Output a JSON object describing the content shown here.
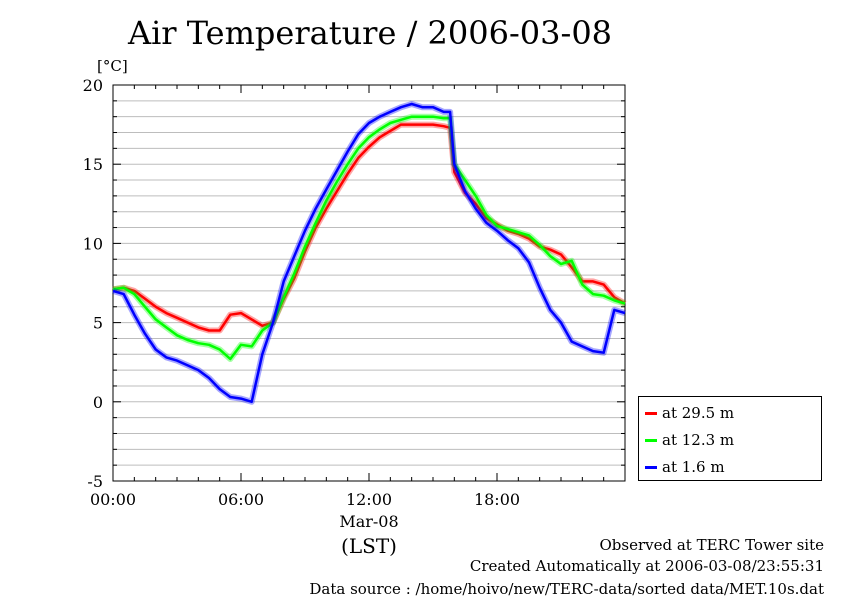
{
  "title": "Air Temperature / 2006-03-08",
  "chart_data": {
    "type": "line",
    "title": "Air Temperature / 2006-03-08",
    "ylabel": "[°C]",
    "xlabel": "(LST)",
    "x_date_label": "Mar-08",
    "ylim": [
      -5,
      20
    ],
    "xlim_hours": [
      0,
      24
    ],
    "y_ticks": [
      "20",
      "15",
      "10",
      "5",
      "0",
      "-5"
    ],
    "x_ticks": [
      "00:00",
      "06:00",
      "12:00",
      "18:00"
    ],
    "grid": true,
    "legend_position": "right",
    "series": [
      {
        "name": "at 29.5 m",
        "color": "#ff0000",
        "x": [
          0,
          0.5,
          1,
          1.5,
          2,
          2.5,
          3,
          3.5,
          4,
          4.5,
          5,
          5.5,
          6,
          6.5,
          7,
          7.5,
          8,
          8.5,
          9,
          9.5,
          10,
          10.5,
          11,
          11.5,
          12,
          12.5,
          13,
          13.5,
          14,
          14.5,
          15,
          15.5,
          15.8,
          16,
          16.5,
          17,
          17.5,
          18,
          18.5,
          19,
          19.5,
          20,
          20.5,
          21,
          21.5,
          22,
          22.5,
          23,
          23.5,
          24
        ],
        "values": [
          7.1,
          7.2,
          7.0,
          6.5,
          6.0,
          5.6,
          5.3,
          5.0,
          4.7,
          4.5,
          4.5,
          5.5,
          5.6,
          5.2,
          4.8,
          5.0,
          6.5,
          7.8,
          9.5,
          11.0,
          12.2,
          13.3,
          14.4,
          15.4,
          16.1,
          16.7,
          17.1,
          17.5,
          17.5,
          17.5,
          17.5,
          17.4,
          17.3,
          14.5,
          13.2,
          12.5,
          11.6,
          11.2,
          10.8,
          10.6,
          10.3,
          9.8,
          9.6,
          9.3,
          8.5,
          7.6,
          7.6,
          7.4,
          6.6,
          6.2
        ]
      },
      {
        "name": "at 12.3 m",
        "color": "#00ff00",
        "x": [
          0,
          0.5,
          1,
          1.5,
          2,
          2.5,
          3,
          3.5,
          4,
          4.5,
          5,
          5.5,
          6,
          6.5,
          7,
          7.5,
          8,
          8.5,
          9,
          9.5,
          10,
          10.5,
          11,
          11.5,
          12,
          12.5,
          13,
          13.5,
          14,
          14.5,
          15,
          15.5,
          15.8,
          16,
          16.5,
          17,
          17.5,
          18,
          18.5,
          19,
          19.5,
          20,
          20.5,
          21,
          21.5,
          22,
          22.5,
          23,
          23.5,
          24
        ],
        "values": [
          7.1,
          7.2,
          6.8,
          6.0,
          5.2,
          4.7,
          4.2,
          3.9,
          3.7,
          3.6,
          3.3,
          2.7,
          3.6,
          3.5,
          4.5,
          5.0,
          6.6,
          8.1,
          9.8,
          11.3,
          12.7,
          13.9,
          15.0,
          16.0,
          16.7,
          17.2,
          17.6,
          17.8,
          18.0,
          18.0,
          18.0,
          17.9,
          17.9,
          15.0,
          14.0,
          13.0,
          11.8,
          11.1,
          10.9,
          10.7,
          10.5,
          9.9,
          9.2,
          8.7,
          8.9,
          7.4,
          6.8,
          6.7,
          6.4,
          6.2
        ]
      },
      {
        "name": "at 1.6 m",
        "color": "#0000ff",
        "x": [
          0,
          0.5,
          1,
          1.5,
          2,
          2.5,
          3,
          3.5,
          4,
          4.5,
          5,
          5.5,
          6,
          6.5,
          7,
          7.5,
          8,
          8.5,
          9,
          9.5,
          10,
          10.5,
          11,
          11.5,
          12,
          12.5,
          13,
          13.5,
          14,
          14.5,
          15,
          15.5,
          15.8,
          16,
          16.5,
          17,
          17.5,
          18,
          18.5,
          19,
          19.5,
          20,
          20.5,
          21,
          21.5,
          22,
          22.5,
          23,
          23.5,
          24
        ],
        "values": [
          7.0,
          6.8,
          5.5,
          4.3,
          3.3,
          2.8,
          2.6,
          2.3,
          2.0,
          1.5,
          0.8,
          0.3,
          0.2,
          0.0,
          3.0,
          5.0,
          7.6,
          9.2,
          10.8,
          12.2,
          13.4,
          14.6,
          15.8,
          16.9,
          17.6,
          18.0,
          18.3,
          18.6,
          18.8,
          18.6,
          18.6,
          18.3,
          18.3,
          15.0,
          13.3,
          12.2,
          11.3,
          10.8,
          10.2,
          9.7,
          8.8,
          7.2,
          5.8,
          5.0,
          3.8,
          3.5,
          3.2,
          3.1,
          5.8,
          5.6
        ]
      }
    ]
  },
  "legend": [
    {
      "label": "at 29.5 m",
      "color": "#ff0000"
    },
    {
      "label": "at 12.3 m",
      "color": "#00ff00"
    },
    {
      "label": "at 1.6 m",
      "color": "#0000ff"
    }
  ],
  "footer": {
    "line1": "Observed at TERC Tower site",
    "line2": "Created Automatically at 2006-03-08/23:55:31",
    "line3": "Data source : /home/hoivo/new/TERC-data/sorted  data/MET.10s.dat"
  }
}
